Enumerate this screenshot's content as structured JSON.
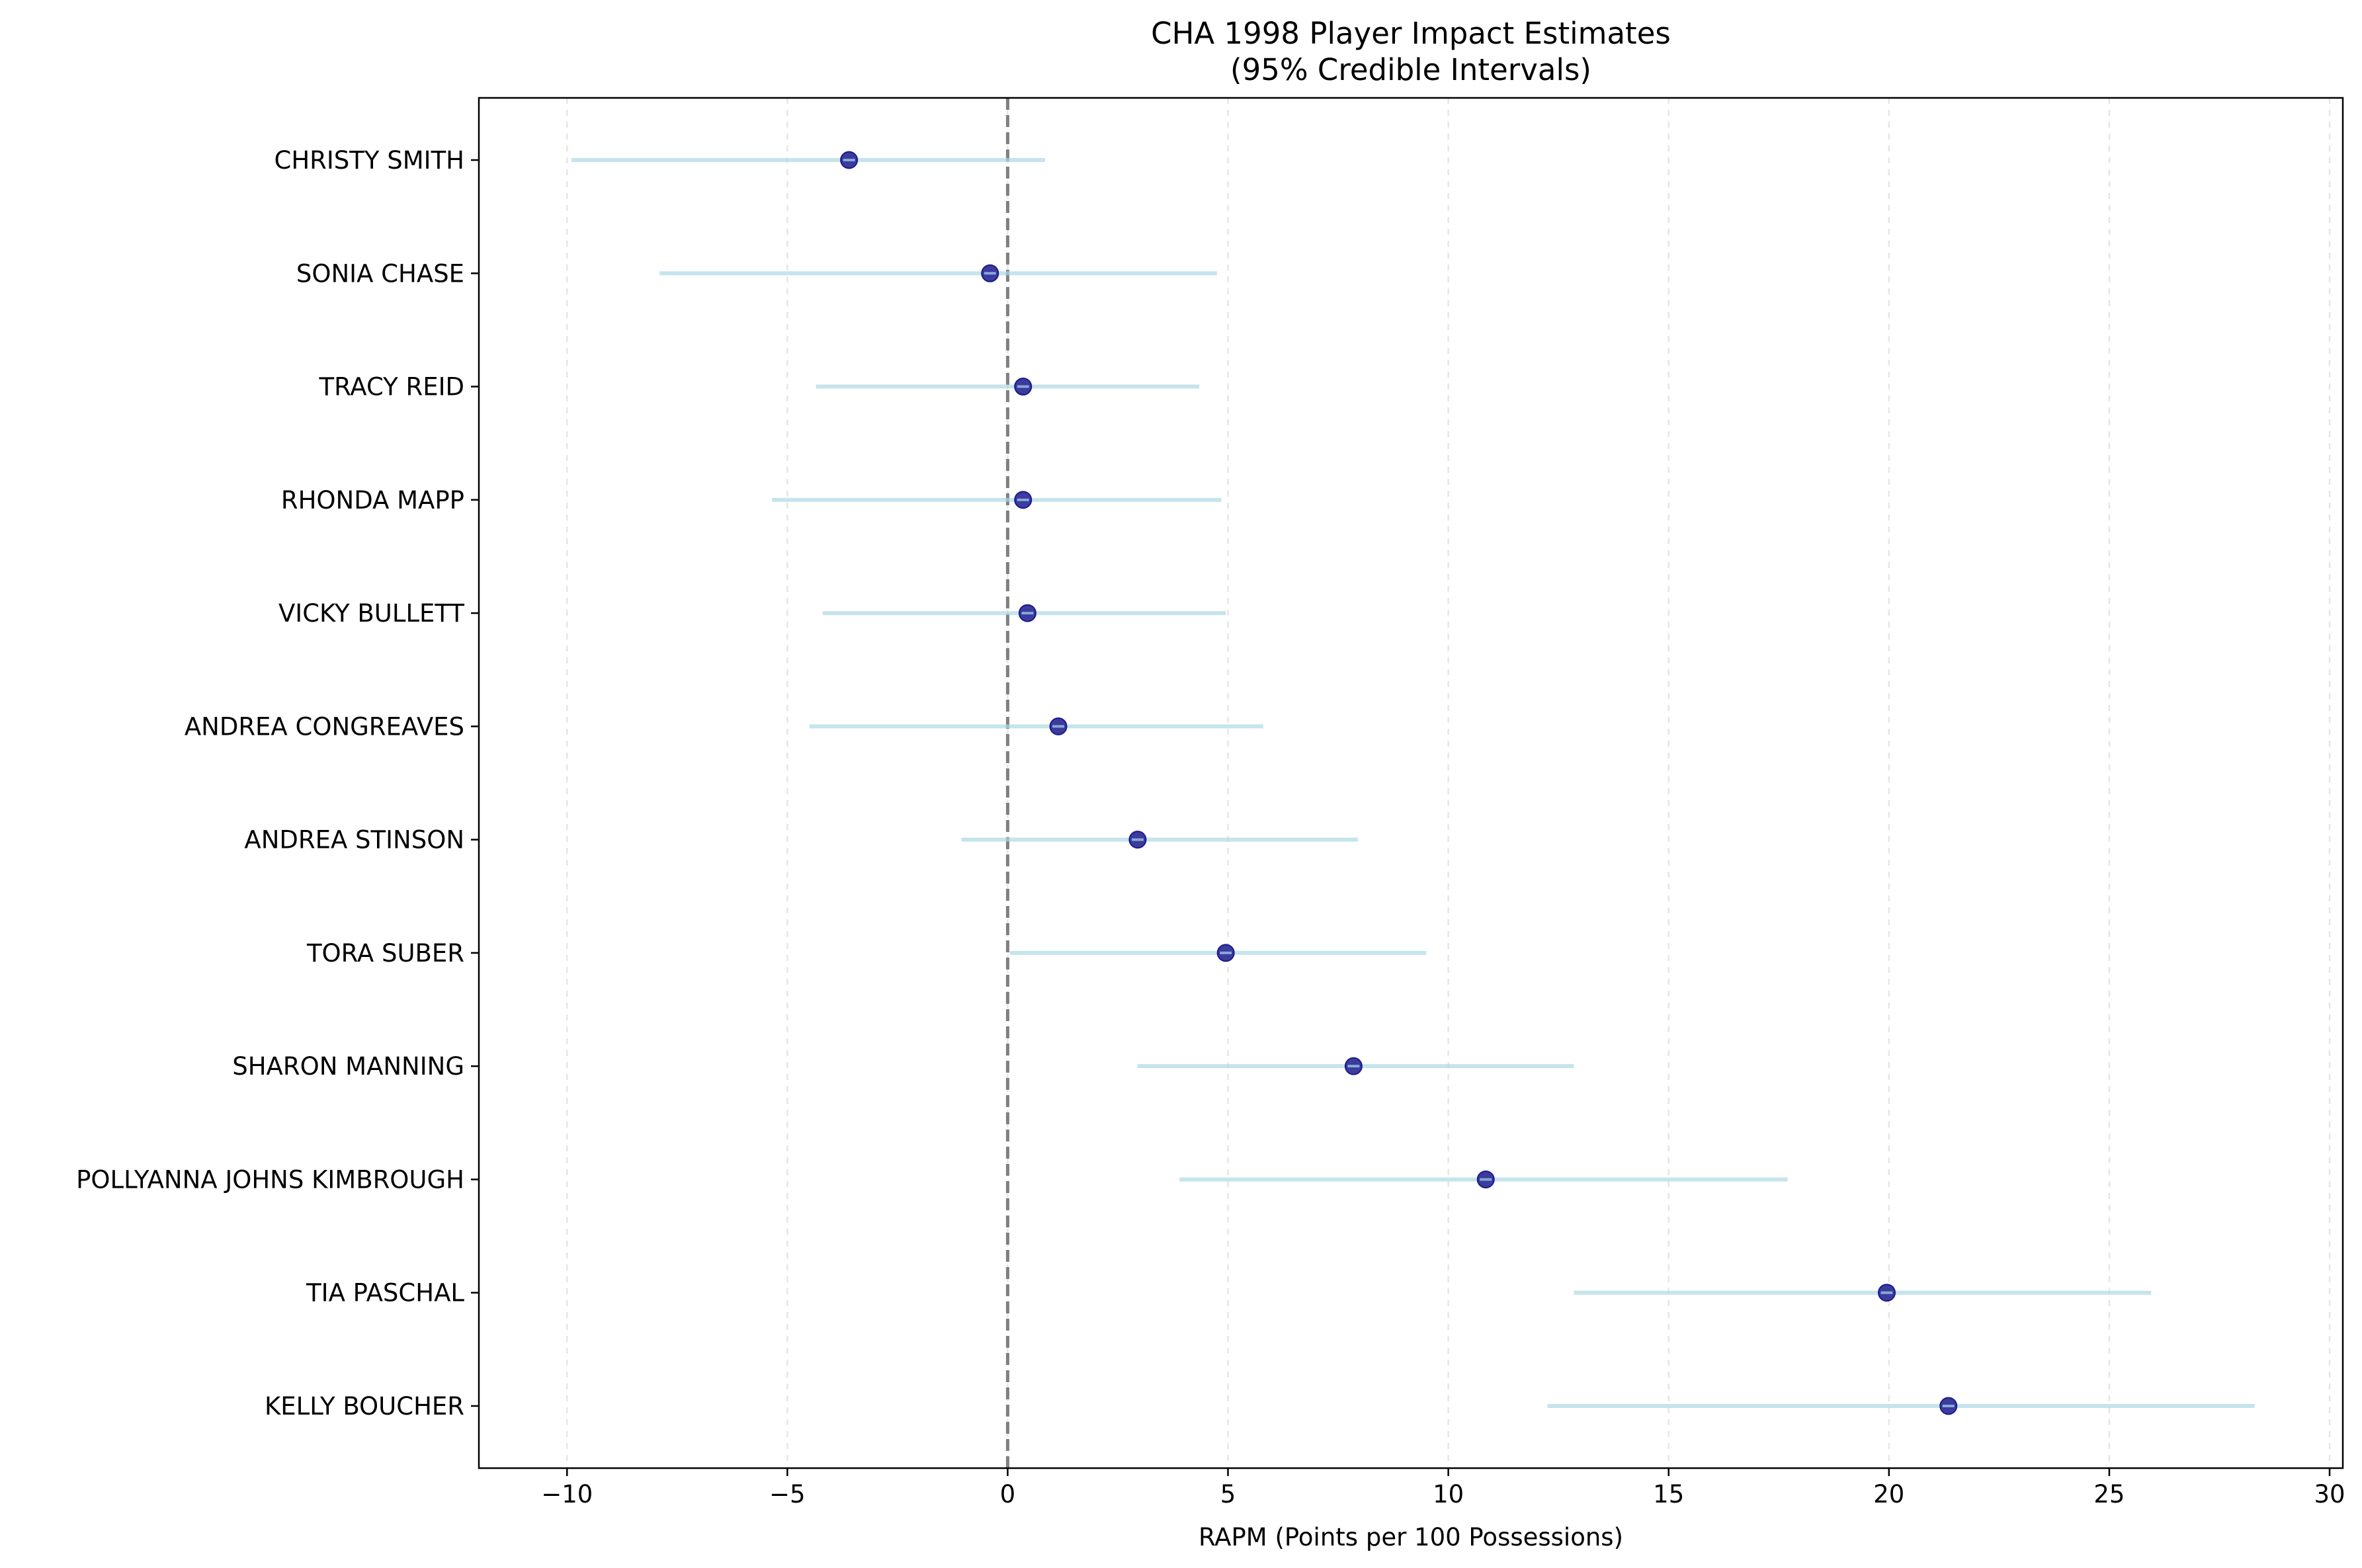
{
  "chart_data": {
    "type": "scatter",
    "title": "CHA 1998 Player Impact Estimates",
    "subtitle": "(95% Credible Intervals)",
    "xlabel": "RAPM (Points per 100 Possessions)",
    "ylabel": "",
    "xlim": [
      -12,
      30.3
    ],
    "x_ticks": [
      -10,
      -5,
      0,
      5,
      10,
      15,
      20,
      25,
      30
    ],
    "x_tick_labels": [
      "−10",
      "−5",
      "0",
      "5",
      "10",
      "15",
      "20",
      "25",
      "30"
    ],
    "grid": "vertical dashed",
    "reference_line": 0,
    "categories": [
      "CHRISTY SMITH",
      "SONIA CHASE",
      "TRACY REID",
      "RHONDA MAPP",
      "VICKY BULLETT",
      "ANDREA CONGREAVES",
      "ANDREA STINSON",
      "TORA SUBER",
      "SHARON MANNING",
      "POLLYANNA JOHNS KIMBROUGH",
      "TIA PASCHAL",
      "KELLY BOUCHER"
    ],
    "series": [
      {
        "estimates": [
          -3.6,
          -0.4,
          0.35,
          0.35,
          0.45,
          1.15,
          2.95,
          4.95,
          7.85,
          10.85,
          19.95,
          21.35
        ],
        "lower": [
          -9.9,
          -7.9,
          -4.35,
          -5.35,
          -4.2,
          -4.5,
          -1.05,
          0.05,
          2.95,
          3.9,
          12.85,
          12.25
        ],
        "upper": [
          0.85,
          4.75,
          4.35,
          4.85,
          4.95,
          5.8,
          7.95,
          9.5,
          12.85,
          17.7,
          25.95,
          28.3
        ]
      }
    ],
    "colors": {
      "point_fill": "#1a1a8c",
      "point_highlight": "#8aa6d6",
      "interval": "#add8e6",
      "reference_line": "#808080",
      "grid": "#e6e6e6",
      "axes": "#000000"
    }
  }
}
